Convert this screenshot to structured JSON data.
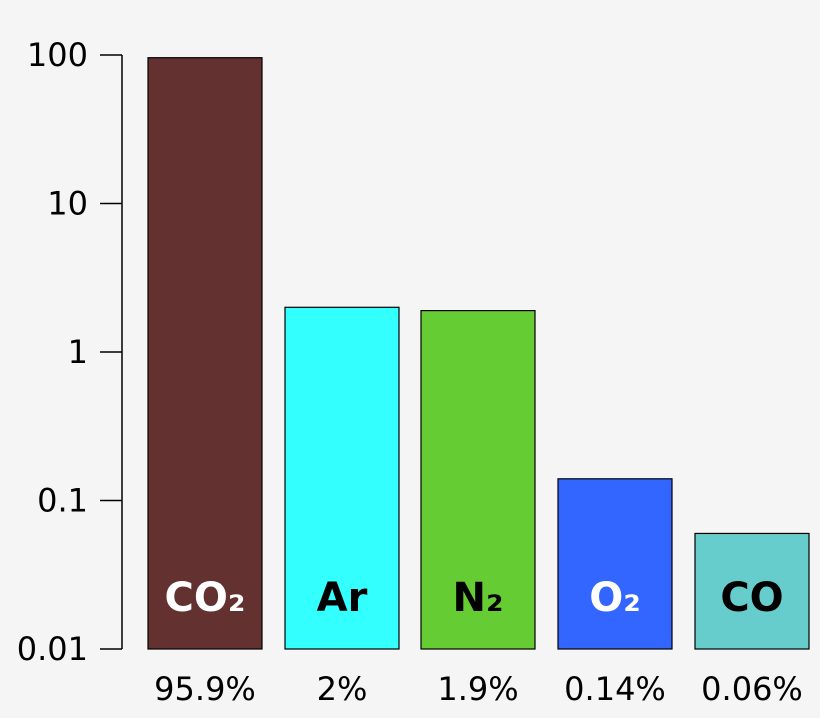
{
  "chart_data": {
    "type": "bar",
    "title": "",
    "xlabel": "",
    "ylabel": "",
    "yscale": "log",
    "ylim": [
      0.01,
      100
    ],
    "yticks": [
      "100",
      "10",
      "1",
      "0.1",
      "0.01"
    ],
    "ytick_values": [
      100,
      10,
      1,
      0.1,
      0.01
    ],
    "grid": false,
    "categories": [
      "CO₂",
      "Ar",
      "N₂",
      "O₂",
      "CO"
    ],
    "values": [
      95.9,
      2,
      1.9,
      0.14,
      0.06
    ],
    "value_labels": [
      "95.9%",
      "2%",
      "1.9%",
      "0.14%",
      "0.06%"
    ],
    "colors": [
      "#633130",
      "#33ffff",
      "#66cc33",
      "#3366ff",
      "#66cccc"
    ],
    "label_colors": [
      "#ffffff",
      "#000000",
      "#000000",
      "#ffffff",
      "#000000"
    ]
  }
}
